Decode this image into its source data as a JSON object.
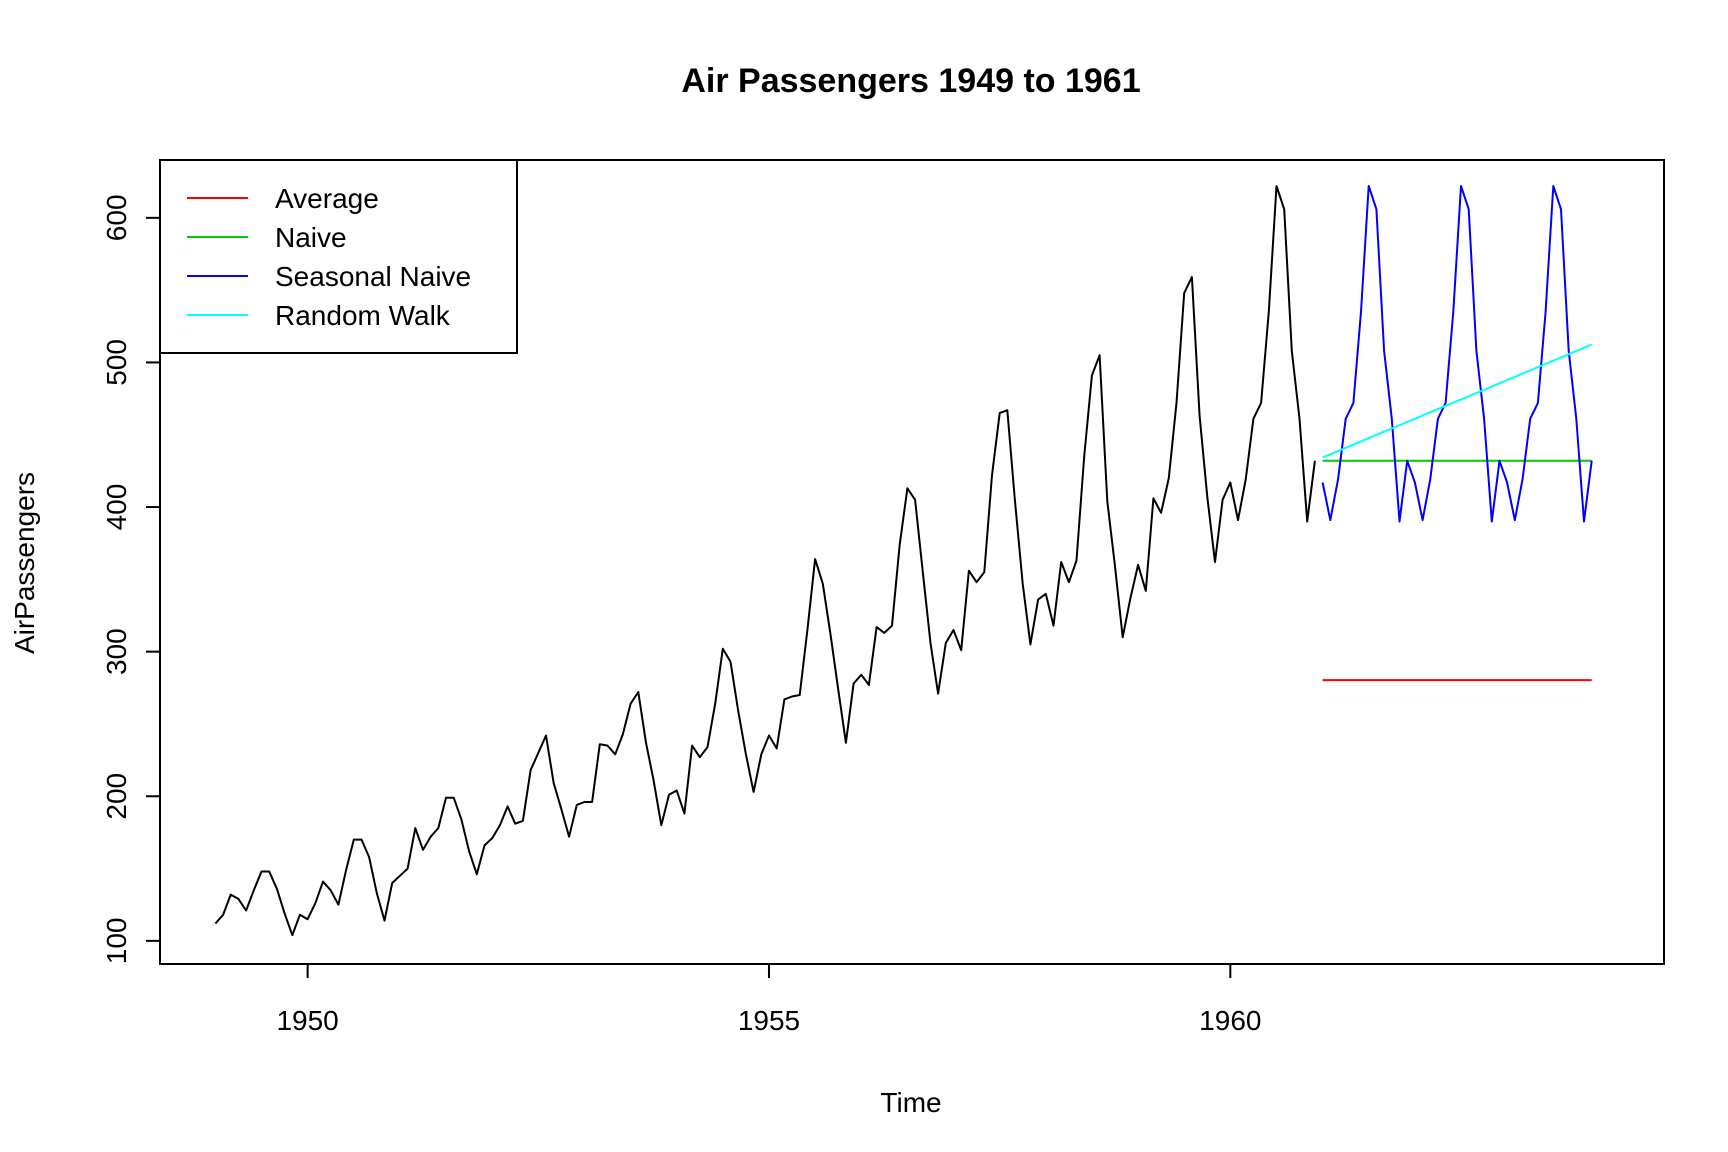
{
  "chart_data": {
    "type": "line",
    "title": "Air Passengers 1949 to 1961",
    "xlabel": "Time",
    "ylabel": "AirPassengers",
    "xlim": [
      1948.4,
      1964.7
    ],
    "ylim": [
      84,
      640
    ],
    "x_ticks": [
      1950,
      1955,
      1960
    ],
    "y_ticks": [
      100,
      200,
      300,
      400,
      500,
      600
    ],
    "legend_position": "top-left",
    "grid": false,
    "series": [
      {
        "name": "",
        "color": "#000000",
        "start": 1949,
        "frequency": 12,
        "values": [
          112,
          118,
          132,
          129,
          121,
          135,
          148,
          148,
          136,
          119,
          104,
          118,
          115,
          126,
          141,
          135,
          125,
          149,
          170,
          170,
          158,
          133,
          114,
          140,
          145,
          150,
          178,
          163,
          172,
          178,
          199,
          199,
          184,
          162,
          146,
          166,
          171,
          180,
          193,
          181,
          183,
          218,
          230,
          242,
          209,
          191,
          172,
          194,
          196,
          196,
          236,
          235,
          229,
          243,
          264,
          272,
          237,
          211,
          180,
          201,
          204,
          188,
          235,
          227,
          234,
          264,
          302,
          293,
          259,
          229,
          203,
          229,
          242,
          233,
          267,
          269,
          270,
          315,
          364,
          347,
          312,
          274,
          237,
          278,
          284,
          277,
          317,
          313,
          318,
          374,
          413,
          405,
          355,
          306,
          271,
          306,
          315,
          301,
          356,
          348,
          355,
          422,
          465,
          467,
          404,
          347,
          305,
          336,
          340,
          318,
          362,
          348,
          363,
          435,
          491,
          505,
          404,
          359,
          310,
          337,
          360,
          342,
          406,
          396,
          420,
          472,
          548,
          559,
          463,
          407,
          362,
          405,
          417,
          391,
          419,
          461,
          472,
          535,
          622,
          606,
          508,
          461,
          390,
          432
        ]
      },
      {
        "name": "Average",
        "color": "#ff0000",
        "start": 1961,
        "frequency": 12,
        "values": [
          280.3,
          280.3,
          280.3,
          280.3,
          280.3,
          280.3,
          280.3,
          280.3,
          280.3,
          280.3,
          280.3,
          280.3,
          280.3,
          280.3,
          280.3,
          280.3,
          280.3,
          280.3,
          280.3,
          280.3,
          280.3,
          280.3,
          280.3,
          280.3,
          280.3,
          280.3,
          280.3,
          280.3,
          280.3,
          280.3,
          280.3,
          280.3,
          280.3,
          280.3,
          280.3,
          280.3
        ]
      },
      {
        "name": "Naive",
        "color": "#00cd00",
        "start": 1961,
        "frequency": 12,
        "values": [
          432,
          432,
          432,
          432,
          432,
          432,
          432,
          432,
          432,
          432,
          432,
          432,
          432,
          432,
          432,
          432,
          432,
          432,
          432,
          432,
          432,
          432,
          432,
          432,
          432,
          432,
          432,
          432,
          432,
          432,
          432,
          432,
          432,
          432,
          432,
          432
        ]
      },
      {
        "name": "Seasonal Naive",
        "color": "#0000ff",
        "start": 1961,
        "frequency": 12,
        "values": [
          417,
          391,
          419,
          461,
          472,
          535,
          622,
          606,
          508,
          461,
          390,
          432,
          417,
          391,
          419,
          461,
          472,
          535,
          622,
          606,
          508,
          461,
          390,
          432,
          417,
          391,
          419,
          461,
          472,
          535,
          622,
          606,
          508,
          461,
          390,
          432
        ]
      },
      {
        "name": "Random Walk",
        "color": "#00ffff",
        "start": 1961,
        "frequency": 12,
        "values": [
          434.2,
          436.5,
          438.7,
          440.9,
          443.2,
          445.4,
          447.6,
          449.9,
          452.1,
          454.3,
          456.6,
          458.8,
          461.0,
          463.3,
          465.5,
          467.7,
          470.0,
          472.2,
          474.4,
          476.6,
          478.9,
          481.1,
          483.3,
          485.6,
          487.8,
          490.0,
          492.3,
          494.5,
          496.7,
          499.0,
          501.2,
          503.4,
          505.7,
          507.9,
          510.1,
          512.4
        ]
      }
    ],
    "legend": [
      "Average",
      "Naive",
      "Seasonal Naive",
      "Random Walk"
    ]
  }
}
